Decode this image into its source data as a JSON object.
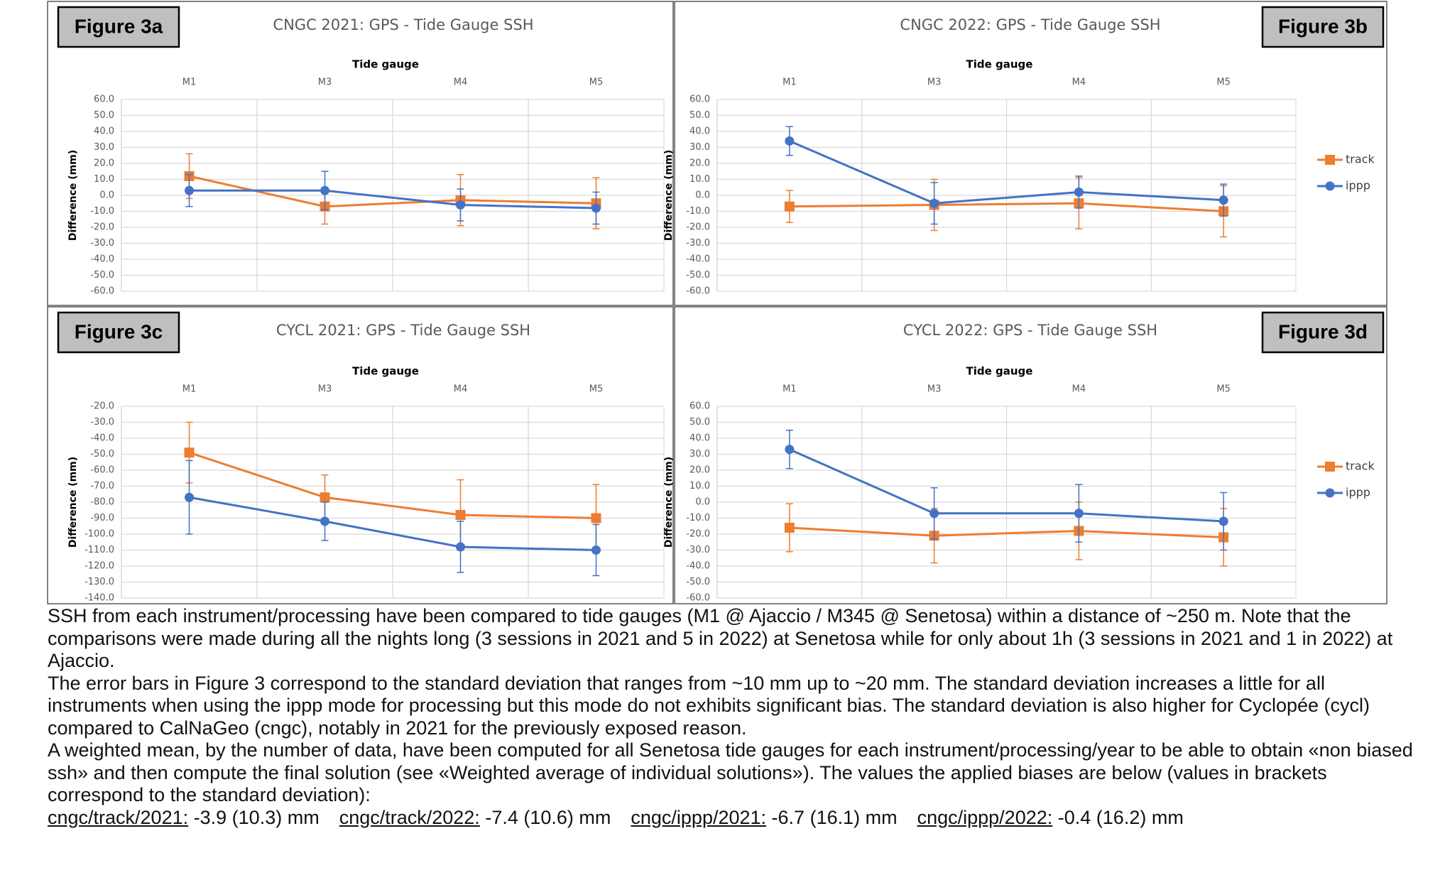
{
  "chart_data": [
    {
      "type": "line",
      "figure_label": "Figure 3a",
      "title": "CNGC 2021: GPS - Tide Gauge SSH",
      "x_label": "Tide gauge",
      "y_label": "Difference (mm)",
      "categories": [
        "M1",
        "M3",
        "M4",
        "M5"
      ],
      "ylim": [
        -60,
        60
      ],
      "yticks": [
        {
          "value": 60,
          "label": "60.0"
        },
        {
          "value": 50,
          "label": "50.0"
        },
        {
          "value": 40,
          "label": "40.0"
        },
        {
          "value": 30,
          "label": "30.0"
        },
        {
          "value": 20,
          "label": "20.0"
        },
        {
          "value": 10,
          "label": "10.0"
        },
        {
          "value": 0,
          "label": "0.0"
        },
        {
          "value": -10,
          "label": "-10.0"
        },
        {
          "value": -20,
          "label": "-20.0"
        },
        {
          "value": -30,
          "label": "-30.0"
        },
        {
          "value": -40,
          "label": "-40.0"
        },
        {
          "value": -50,
          "label": "-50.0"
        },
        {
          "value": -60,
          "label": "-60.0"
        }
      ],
      "grid": true,
      "series": [
        {
          "name": "track",
          "color": "#ed7d31",
          "marker": "square",
          "values": [
            12,
            -7,
            -3,
            -5
          ],
          "errors": [
            14,
            11,
            16,
            16
          ]
        },
        {
          "name": "ippp",
          "color": "#4472c4",
          "marker": "circle",
          "values": [
            3,
            3,
            -6,
            -8
          ],
          "errors": [
            10,
            12,
            10,
            10
          ]
        }
      ]
    },
    {
      "type": "line",
      "figure_label": "Figure 3b",
      "title": "CNGC 2022: GPS - Tide Gauge SSH",
      "x_label": "Tide gauge",
      "y_label": "Difference (mm)",
      "categories": [
        "M1",
        "M3",
        "M4",
        "M5"
      ],
      "ylim": [
        -60,
        60
      ],
      "yticks": [
        {
          "value": 60,
          "label": "60.0"
        },
        {
          "value": 50,
          "label": "50.0"
        },
        {
          "value": 40,
          "label": "40.0"
        },
        {
          "value": 30,
          "label": "30.0"
        },
        {
          "value": 20,
          "label": "20.0"
        },
        {
          "value": 10,
          "label": "10.0"
        },
        {
          "value": 0,
          "label": "0.0"
        },
        {
          "value": -10,
          "label": "-10.0"
        },
        {
          "value": -20,
          "label": "-20.0"
        },
        {
          "value": -30,
          "label": "-30.0"
        },
        {
          "value": -40,
          "label": "-40.0"
        },
        {
          "value": -50,
          "label": "-50.0"
        },
        {
          "value": -60,
          "label": "-60.0"
        }
      ],
      "grid": true,
      "legend": "right",
      "series": [
        {
          "name": "track",
          "color": "#ed7d31",
          "marker": "square",
          "values": [
            -7,
            -6,
            -5,
            -10
          ],
          "errors": [
            10,
            16,
            16,
            16
          ]
        },
        {
          "name": "ippp",
          "color": "#4472c4",
          "marker": "circle",
          "values": [
            34,
            -5,
            2,
            -3
          ],
          "errors": [
            9,
            13,
            10,
            10
          ]
        }
      ]
    },
    {
      "type": "line",
      "figure_label": "Figure 3c",
      "title": "CYCL 2021: GPS - Tide Gauge SSH",
      "x_label": "Tide gauge",
      "y_label": "Difference (mm)",
      "categories": [
        "M1",
        "M3",
        "M4",
        "M5"
      ],
      "ylim": [
        -140,
        -20
      ],
      "yticks": [
        {
          "value": -20,
          "label": "-20.0"
        },
        {
          "value": -30,
          "label": "-30.0"
        },
        {
          "value": -40,
          "label": "-40.0"
        },
        {
          "value": -50,
          "label": "-50.0"
        },
        {
          "value": -60,
          "label": "-60.0"
        },
        {
          "value": -70,
          "label": "-70.0"
        },
        {
          "value": -80,
          "label": "-80.0"
        },
        {
          "value": -90,
          "label": "-90.0"
        },
        {
          "value": -100,
          "label": "-100.0"
        },
        {
          "value": -110,
          "label": "-110.0"
        },
        {
          "value": -120,
          "label": "-120.0"
        },
        {
          "value": -130,
          "label": "-130.0"
        },
        {
          "value": -140,
          "label": "-140.0"
        }
      ],
      "grid": true,
      "series": [
        {
          "name": "track",
          "color": "#ed7d31",
          "marker": "square",
          "values": [
            -49,
            -77,
            -88,
            -90
          ],
          "errors": [
            19,
            14,
            22,
            21
          ]
        },
        {
          "name": "ippp",
          "color": "#4472c4",
          "marker": "circle",
          "values": [
            -77,
            -92,
            -108,
            -110
          ],
          "errors": [
            23,
            12,
            16,
            16
          ]
        }
      ]
    },
    {
      "type": "line",
      "figure_label": "Figure 3d",
      "title": "CYCL 2022: GPS - Tide Gauge SSH",
      "x_label": "Tide gauge",
      "y_label": "Difference (mm)",
      "categories": [
        "M1",
        "M3",
        "M4",
        "M5"
      ],
      "ylim": [
        -60,
        60
      ],
      "yticks": [
        {
          "value": 60,
          "label": "60.0"
        },
        {
          "value": 50,
          "label": "50.0"
        },
        {
          "value": 40,
          "label": "40.0"
        },
        {
          "value": 30,
          "label": "30.0"
        },
        {
          "value": 20,
          "label": "20.0"
        },
        {
          "value": 10,
          "label": "10.0"
        },
        {
          "value": 0,
          "label": "0.0"
        },
        {
          "value": -10,
          "label": "-10.0"
        },
        {
          "value": -20,
          "label": "-20.0"
        },
        {
          "value": -30,
          "label": "-30.0"
        },
        {
          "value": -40,
          "label": "-40.0"
        },
        {
          "value": -50,
          "label": "-50.0"
        },
        {
          "value": -60,
          "label": "-60.0"
        }
      ],
      "grid": true,
      "legend": "right",
      "series": [
        {
          "name": "track",
          "color": "#ed7d31",
          "marker": "square",
          "values": [
            -16,
            -21,
            -18,
            -22
          ],
          "errors": [
            15,
            17,
            18,
            18
          ]
        },
        {
          "name": "ippp",
          "color": "#4472c4",
          "marker": "circle",
          "values": [
            33,
            -7,
            -7,
            -12
          ],
          "errors": [
            12,
            16,
            18,
            18
          ]
        }
      ]
    }
  ],
  "paragraphs": [
    "SSH from each instrument/processing have been compared to tide gauges (M1 @ Ajaccio / M345 @ Senetosa) within a distance of ~250 m. Note that the comparisons were made during all the nights long (3 sessions in 2021 and 5 in 2022) at Senetosa while for only about 1h (3 sessions in 2021 and 1 in 2022) at Ajaccio.",
    "The error bars in Figure 3 correspond to the standard deviation that ranges from ~10 mm up to ~20 mm. The standard deviation increases a little for all instruments when using the ippp mode for processing but this mode do not exhibits significant bias. The standard deviation is also higher for Cyclopée (cycl) compared to CalNaGeo (cngc), notably in 2021 for the previously exposed reason.",
    "A weighted mean, by the number of data, have been computed for all Senetosa tide gauges for each instrument/processing/year to be able to obtain «non biased ssh» and then compute the final solution (see «Weighted average of individual solutions»). The values the applied biases are below (values in brackets correspond to the standard deviation):"
  ],
  "biases": [
    {
      "label": "cngc/track/2021:",
      "value": "-3.9 (10.3) mm"
    },
    {
      "label": "cngc/track/2022:",
      "value": "-7.4 (10.6) mm"
    },
    {
      "label": "cngc/ippp/2021:",
      "value": "-6.7 (16.1) mm"
    },
    {
      "label": "cngc/ippp/2022:",
      "value": "-0.4 (16.2) mm"
    }
  ]
}
